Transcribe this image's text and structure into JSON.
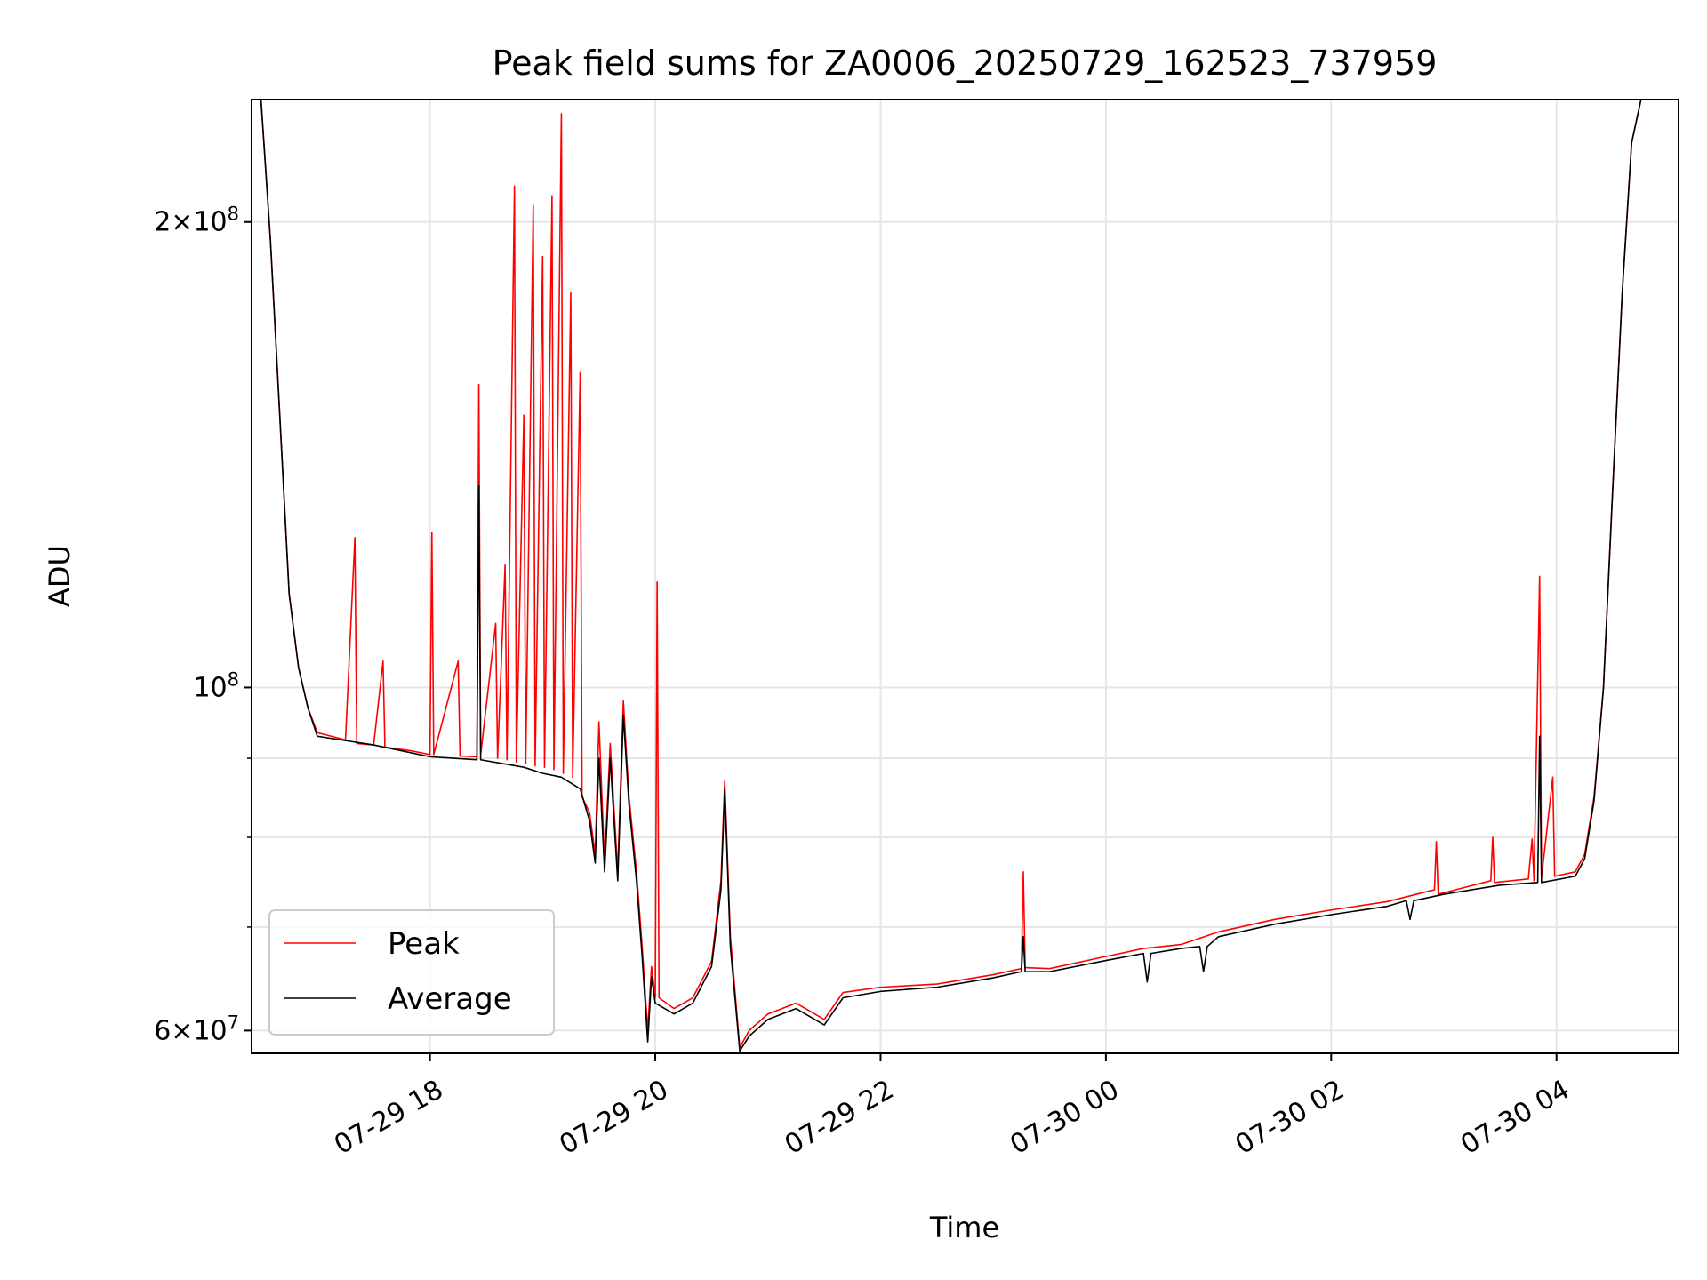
{
  "chart_data": {
    "type": "line",
    "title": "Peak field sums for ZA0006_20250729_162523_737959",
    "xlabel": "Time",
    "ylabel": "ADU",
    "yscale": "log",
    "grid": true,
    "legend_position": "lower-left",
    "xlim": [
      "2025-07-29 16:25",
      "2025-07-30 05:05"
    ],
    "ylim": [
      58000000,
      240000000
    ],
    "x_ticks": [
      "2025-07-29 18:00",
      "2025-07-29 20:00",
      "2025-07-29 22:00",
      "2025-07-30 00:00",
      "2025-07-30 02:00",
      "2025-07-30 04:00"
    ],
    "x_tick_labels": [
      "07-29 18",
      "07-29 20",
      "07-29 22",
      "07-30 00",
      "07-30 02",
      "07-30 04"
    ],
    "y_major_ticks": [
      {
        "value": 60000000,
        "base": "6",
        "exp": "7"
      },
      {
        "value": 100000000,
        "base": "",
        "exp": "8"
      },
      {
        "value": 200000000,
        "base": "2",
        "exp": "8"
      }
    ],
    "y_minor_ticks": [
      70000000,
      80000000,
      90000000
    ],
    "series": [
      {
        "name": "Peak",
        "color": "#ff0000",
        "points": [
          [
            "2025-07-29 16:30",
            240000000
          ],
          [
            "2025-07-29 16:35",
            195000000
          ],
          [
            "2025-07-29 16:40",
            150000000
          ],
          [
            "2025-07-29 16:45",
            115000000
          ],
          [
            "2025-07-29 16:50",
            103000000
          ],
          [
            "2025-07-29 16:55",
            97000000
          ],
          [
            "2025-07-29 17:00",
            93500000
          ],
          [
            "2025-07-29 17:15",
            92500000
          ],
          [
            "2025-07-29 17:20",
            125000000
          ],
          [
            "2025-07-29 17:21",
            92000000
          ],
          [
            "2025-07-29 17:30",
            91800000
          ],
          [
            "2025-07-29 17:35",
            104000000
          ],
          [
            "2025-07-29 17:36",
            91500000
          ],
          [
            "2025-07-29 17:50",
            91000000
          ],
          [
            "2025-07-29 18:00",
            90500000
          ],
          [
            "2025-07-29 18:01",
            126000000
          ],
          [
            "2025-07-29 18:02",
            90500000
          ],
          [
            "2025-07-29 18:15",
            104000000
          ],
          [
            "2025-07-29 18:16",
            90300000
          ],
          [
            "2025-07-29 18:25",
            90200000
          ],
          [
            "2025-07-29 18:26",
            157000000
          ],
          [
            "2025-07-29 18:27",
            90500000
          ],
          [
            "2025-07-29 18:35",
            110000000
          ],
          [
            "2025-07-29 18:36",
            90000000
          ],
          [
            "2025-07-29 18:40",
            120000000
          ],
          [
            "2025-07-29 18:41",
            89800000
          ],
          [
            "2025-07-29 18:45",
            211000000
          ],
          [
            "2025-07-29 18:46",
            89500000
          ],
          [
            "2025-07-29 18:50",
            150000000
          ],
          [
            "2025-07-29 18:51",
            89300000
          ],
          [
            "2025-07-29 18:55",
            205000000
          ],
          [
            "2025-07-29 18:56",
            89000000
          ],
          [
            "2025-07-29 19:00",
            190000000
          ],
          [
            "2025-07-29 19:01",
            88800000
          ],
          [
            "2025-07-29 19:05",
            208000000
          ],
          [
            "2025-07-29 19:06",
            88500000
          ],
          [
            "2025-07-29 19:10",
            235000000
          ],
          [
            "2025-07-29 19:11",
            88000000
          ],
          [
            "2025-07-29 19:15",
            180000000
          ],
          [
            "2025-07-29 19:16",
            87500000
          ],
          [
            "2025-07-29 19:20",
            160000000
          ],
          [
            "2025-07-29 19:21",
            85000000
          ],
          [
            "2025-07-29 19:25",
            83000000
          ],
          [
            "2025-07-29 19:28",
            78000000
          ],
          [
            "2025-07-29 19:30",
            95000000
          ],
          [
            "2025-07-29 19:33",
            77000000
          ],
          [
            "2025-07-29 19:36",
            92000000
          ],
          [
            "2025-07-29 19:40",
            76000000
          ],
          [
            "2025-07-29 19:43",
            98000000
          ],
          [
            "2025-07-29 19:46",
            85000000
          ],
          [
            "2025-07-29 19:50",
            76000000
          ],
          [
            "2025-07-29 19:53",
            68000000
          ],
          [
            "2025-07-29 19:56",
            60000000
          ],
          [
            "2025-07-29 19:58",
            66000000
          ],
          [
            "2025-07-29 20:00",
            63000000
          ],
          [
            "2025-07-29 20:01",
            117000000
          ],
          [
            "2025-07-29 20:02",
            63000000
          ],
          [
            "2025-07-29 20:10",
            62000000
          ],
          [
            "2025-07-29 20:20",
            63000000
          ],
          [
            "2025-07-29 20:30",
            66500000
          ],
          [
            "2025-07-29 20:35",
            75000000
          ],
          [
            "2025-07-29 20:37",
            87000000
          ],
          [
            "2025-07-29 20:40",
            69000000
          ],
          [
            "2025-07-29 20:45",
            58500000
          ],
          [
            "2025-07-29 20:50",
            60000000
          ],
          [
            "2025-07-29 21:00",
            61500000
          ],
          [
            "2025-07-29 21:15",
            62500000
          ],
          [
            "2025-07-29 21:30",
            61000000
          ],
          [
            "2025-07-29 21:40",
            63500000
          ],
          [
            "2025-07-29 22:00",
            64000000
          ],
          [
            "2025-07-29 22:30",
            64300000
          ],
          [
            "2025-07-29 23:00",
            65200000
          ],
          [
            "2025-07-29 23:15",
            65800000
          ],
          [
            "2025-07-29 23:16",
            76000000
          ],
          [
            "2025-07-29 23:17",
            65900000
          ],
          [
            "2025-07-29 23:30",
            65800000
          ],
          [
            "2025-07-30 00:00",
            67000000
          ],
          [
            "2025-07-30 00:20",
            67800000
          ],
          [
            "2025-07-30 00:40",
            68200000
          ],
          [
            "2025-07-30 01:00",
            69500000
          ],
          [
            "2025-07-30 01:30",
            70800000
          ],
          [
            "2025-07-30 02:00",
            71800000
          ],
          [
            "2025-07-30 02:30",
            72700000
          ],
          [
            "2025-07-30 02:55",
            74000000
          ],
          [
            "2025-07-30 02:56",
            79500000
          ],
          [
            "2025-07-30 02:57",
            73500000
          ],
          [
            "2025-07-30 03:25",
            75000000
          ],
          [
            "2025-07-30 03:26",
            80000000
          ],
          [
            "2025-07-30 03:27",
            74800000
          ],
          [
            "2025-07-30 03:45",
            75200000
          ],
          [
            "2025-07-30 03:47",
            79800000
          ],
          [
            "2025-07-30 03:48",
            75000000
          ],
          [
            "2025-07-30 03:51",
            118000000
          ],
          [
            "2025-07-30 03:52",
            75300000
          ],
          [
            "2025-07-30 03:58",
            87500000
          ],
          [
            "2025-07-30 03:59",
            75500000
          ],
          [
            "2025-07-30 04:10",
            76000000
          ],
          [
            "2025-07-30 04:15",
            78000000
          ],
          [
            "2025-07-30 04:20",
            85000000
          ],
          [
            "2025-07-30 04:25",
            100000000
          ],
          [
            "2025-07-30 04:30",
            135000000
          ],
          [
            "2025-07-30 04:35",
            180000000
          ],
          [
            "2025-07-30 04:40",
            225000000
          ],
          [
            "2025-07-30 04:45",
            240000000
          ]
        ]
      },
      {
        "name": "Average",
        "color": "#000000",
        "points": [
          [
            "2025-07-29 16:30",
            240000000
          ],
          [
            "2025-07-29 16:35",
            195000000
          ],
          [
            "2025-07-29 16:40",
            150000000
          ],
          [
            "2025-07-29 16:45",
            115000000
          ],
          [
            "2025-07-29 16:50",
            103000000
          ],
          [
            "2025-07-29 16:55",
            97000000
          ],
          [
            "2025-07-29 17:00",
            93000000
          ],
          [
            "2025-07-29 17:30",
            91800000
          ],
          [
            "2025-07-29 18:00",
            90200000
          ],
          [
            "2025-07-29 18:25",
            89800000
          ],
          [
            "2025-07-29 18:26",
            135000000
          ],
          [
            "2025-07-29 18:27",
            89800000
          ],
          [
            "2025-07-29 18:50",
            88800000
          ],
          [
            "2025-07-29 19:00",
            88000000
          ],
          [
            "2025-07-29 19:10",
            87500000
          ],
          [
            "2025-07-29 19:20",
            86000000
          ],
          [
            "2025-07-29 19:25",
            82000000
          ],
          [
            "2025-07-29 19:28",
            77000000
          ],
          [
            "2025-07-29 19:30",
            90000000
          ],
          [
            "2025-07-29 19:33",
            76000000
          ],
          [
            "2025-07-29 19:36",
            90000000
          ],
          [
            "2025-07-29 19:40",
            75000000
          ],
          [
            "2025-07-29 19:43",
            96000000
          ],
          [
            "2025-07-29 19:46",
            84000000
          ],
          [
            "2025-07-29 19:50",
            75000000
          ],
          [
            "2025-07-29 19:53",
            67000000
          ],
          [
            "2025-07-29 19:56",
            59000000
          ],
          [
            "2025-07-29 19:58",
            65000000
          ],
          [
            "2025-07-29 20:00",
            62500000
          ],
          [
            "2025-07-29 20:10",
            61500000
          ],
          [
            "2025-07-29 20:20",
            62500000
          ],
          [
            "2025-07-29 20:30",
            66000000
          ],
          [
            "2025-07-29 20:35",
            74000000
          ],
          [
            "2025-07-29 20:37",
            86000000
          ],
          [
            "2025-07-29 20:40",
            68000000
          ],
          [
            "2025-07-29 20:45",
            58200000
          ],
          [
            "2025-07-29 20:50",
            59500000
          ],
          [
            "2025-07-29 21:00",
            61000000
          ],
          [
            "2025-07-29 21:15",
            62000000
          ],
          [
            "2025-07-29 21:30",
            60500000
          ],
          [
            "2025-07-29 21:40",
            63000000
          ],
          [
            "2025-07-29 22:00",
            63600000
          ],
          [
            "2025-07-29 22:30",
            64000000
          ],
          [
            "2025-07-29 23:00",
            64900000
          ],
          [
            "2025-07-29 23:15",
            65500000
          ],
          [
            "2025-07-29 23:16",
            69000000
          ],
          [
            "2025-07-29 23:17",
            65500000
          ],
          [
            "2025-07-29 23:30",
            65500000
          ],
          [
            "2025-07-30 00:00",
            66600000
          ],
          [
            "2025-07-30 00:20",
            67300000
          ],
          [
            "2025-07-30 00:22",
            64500000
          ],
          [
            "2025-07-30 00:24",
            67300000
          ],
          [
            "2025-07-30 00:40",
            67800000
          ],
          [
            "2025-07-30 00:50",
            68000000
          ],
          [
            "2025-07-30 00:52",
            65500000
          ],
          [
            "2025-07-30 00:54",
            68000000
          ],
          [
            "2025-07-30 01:00",
            69000000
          ],
          [
            "2025-07-30 01:30",
            70300000
          ],
          [
            "2025-07-30 02:00",
            71300000
          ],
          [
            "2025-07-30 02:30",
            72200000
          ],
          [
            "2025-07-30 02:40",
            72800000
          ],
          [
            "2025-07-30 02:42",
            70800000
          ],
          [
            "2025-07-30 02:44",
            72800000
          ],
          [
            "2025-07-30 03:00",
            73500000
          ],
          [
            "2025-07-30 03:30",
            74500000
          ],
          [
            "2025-07-30 03:50",
            74800000
          ],
          [
            "2025-07-30 03:51",
            93000000
          ],
          [
            "2025-07-30 03:52",
            74800000
          ],
          [
            "2025-07-30 04:10",
            75500000
          ],
          [
            "2025-07-30 04:15",
            77500000
          ],
          [
            "2025-07-30 04:20",
            84500000
          ],
          [
            "2025-07-30 04:25",
            100000000
          ],
          [
            "2025-07-30 04:30",
            135000000
          ],
          [
            "2025-07-30 04:35",
            180000000
          ],
          [
            "2025-07-30 04:40",
            225000000
          ],
          [
            "2025-07-30 04:45",
            240000000
          ]
        ]
      }
    ]
  }
}
